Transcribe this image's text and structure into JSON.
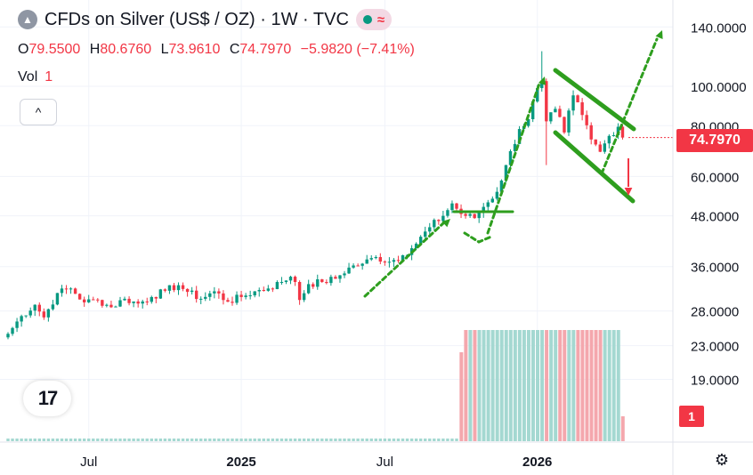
{
  "header": {
    "icon": "silver-symbol-icon",
    "title": "CFDs on Silver (US$ / OZ) · 1W · TVC",
    "status_colors": {
      "market_dot": "#089981",
      "wave": "#f23645"
    }
  },
  "ohlc": {
    "o_label": "O",
    "o": "79.5500",
    "h_label": "H",
    "h": "80.6760",
    "l_label": "L",
    "l": "73.9610",
    "c_label": "C",
    "c": "74.7970",
    "change": "−5.9820 (−7.41%)"
  },
  "volume": {
    "label": "Vol",
    "value": "1"
  },
  "collapse_label": "^",
  "logo_text": "17",
  "last_price_tag": "74.7970",
  "volume_tag": "1",
  "colors": {
    "up": "#089981",
    "down": "#f23645",
    "up_vol": "#a4d8d1",
    "down_vol": "#f4a7ad",
    "annot": "#2e9e1e",
    "arrow_down": "#f23645"
  },
  "chart_data": {
    "type": "candlestick",
    "scale": "log",
    "title": "CFDs on Silver (US$ / OZ)",
    "y_ticks": [
      19,
      23,
      28,
      36,
      48,
      60,
      80,
      100,
      140
    ],
    "y_tick_labels": [
      "19.0000",
      "23.0000",
      "28.0000",
      "36.0000",
      "48.0000",
      "60.0000",
      "80.0000",
      "100.0000",
      "140.0000"
    ],
    "x_tick_labels": [
      "Jul",
      "2025",
      "Jul",
      "2026"
    ],
    "last_price": 74.797,
    "close_anchors": [
      {
        "w": 0,
        "v": 24.6
      },
      {
        "w": 3,
        "v": 27.2
      },
      {
        "w": 6,
        "v": 29.0
      },
      {
        "w": 8,
        "v": 27.0
      },
      {
        "w": 11,
        "v": 31.0
      },
      {
        "w": 14,
        "v": 31.8
      },
      {
        "w": 17,
        "v": 29.4
      },
      {
        "w": 20,
        "v": 29.8
      },
      {
        "w": 23,
        "v": 28.6
      },
      {
        "w": 26,
        "v": 30.0
      },
      {
        "w": 29,
        "v": 29.2
      },
      {
        "w": 32,
        "v": 30.3
      },
      {
        "w": 35,
        "v": 31.4
      },
      {
        "w": 38,
        "v": 32.4
      },
      {
        "w": 40,
        "v": 31.2
      },
      {
        "w": 43,
        "v": 30.0
      },
      {
        "w": 46,
        "v": 31.3
      },
      {
        "w": 49,
        "v": 29.5
      },
      {
        "w": 52,
        "v": 30.3
      },
      {
        "w": 55,
        "v": 31.3
      },
      {
        "w": 58,
        "v": 31.8
      },
      {
        "w": 61,
        "v": 33.0
      },
      {
        "w": 63,
        "v": 34.0
      },
      {
        "w": 64,
        "v": 33.0
      },
      {
        "w": 65,
        "v": 29.8
      },
      {
        "w": 67,
        "v": 32.6
      },
      {
        "w": 70,
        "v": 33.0
      },
      {
        "w": 73,
        "v": 33.6
      },
      {
        "w": 76,
        "v": 35.8
      },
      {
        "w": 79,
        "v": 36.6
      },
      {
        "w": 82,
        "v": 38.0
      },
      {
        "w": 85,
        "v": 37.0
      },
      {
        "w": 88,
        "v": 38.4
      },
      {
        "w": 91,
        "v": 41.0
      },
      {
        "w": 94,
        "v": 45.0
      },
      {
        "w": 97,
        "v": 48.0
      },
      {
        "w": 99,
        "v": 51.5
      },
      {
        "w": 101,
        "v": 48.5
      },
      {
        "w": 104,
        "v": 47.4
      },
      {
        "w": 106,
        "v": 50.5
      },
      {
        "w": 109,
        "v": 55.0
      },
      {
        "w": 111,
        "v": 64.0
      },
      {
        "w": 114,
        "v": 78.5
      },
      {
        "w": 116,
        "v": 83.0
      },
      {
        "w": 118,
        "v": 99.0
      },
      {
        "w": 119,
        "v": 103.0
      },
      {
        "w": 120,
        "v": 82.0
      },
      {
        "w": 122,
        "v": 88.0
      },
      {
        "w": 124,
        "v": 77.0
      },
      {
        "w": 126,
        "v": 95.0
      },
      {
        "w": 128,
        "v": 85.0
      },
      {
        "w": 130,
        "v": 74.0
      },
      {
        "w": 132,
        "v": 69.0
      },
      {
        "w": 134,
        "v": 75.5
      },
      {
        "w": 136,
        "v": 79.5
      },
      {
        "w": 137,
        "v": 74.797
      }
    ],
    "weeks": 138,
    "volume_start_week": 101
  }
}
